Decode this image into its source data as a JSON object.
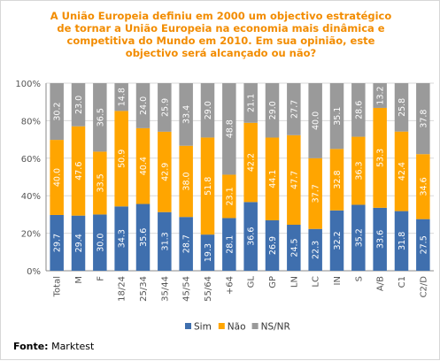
{
  "title_lines": [
    "A União Europeia definiu em 2000 um objectivo estratégico",
    "de tornar a União Europeia na economia mais dinâmica e",
    "competitiva do Mundo em 2010. Em sua opinião, este",
    "objectivo será alcançado ou não?"
  ],
  "source": {
    "label": "Fonte:",
    "value": "Marktest"
  },
  "chart_data": {
    "type": "bar",
    "stacked": true,
    "percent_stacked": true,
    "title": "A União Europeia definiu em 2000 um objectivo estratégico de tornar a União Europeia na economia mais dinâmica e competitiva do Mundo em 2010. Em sua opinião, este objectivo será alcançado ou não?",
    "xlabel": "",
    "ylabel": "",
    "ylim": [
      0,
      100
    ],
    "yticks": [
      "0%",
      "20%",
      "40%",
      "60%",
      "80%",
      "100%"
    ],
    "grid": true,
    "legend_position": "bottom",
    "categories": [
      "Total",
      "M",
      "F",
      "18/24",
      "25/34",
      "35/44",
      "45/54",
      "55/64",
      "+64",
      "GL",
      "GP",
      "LN",
      "LC",
      "IN",
      "S",
      "A/B",
      "C1",
      "C2/D"
    ],
    "series": [
      {
        "name": "Sim",
        "color": "#3f6fae",
        "values": [
          29.7,
          29.4,
          30.0,
          34.3,
          35.6,
          31.3,
          28.7,
          19.3,
          28.1,
          36.6,
          26.9,
          24.5,
          22.3,
          32.2,
          35.2,
          33.6,
          31.8,
          27.5
        ]
      },
      {
        "name": "Não",
        "color": "#ffa500",
        "values": [
          40.0,
          47.6,
          33.5,
          50.9,
          40.4,
          42.9,
          38.0,
          51.8,
          23.1,
          42.2,
          44.1,
          47.7,
          37.7,
          32.8,
          36.3,
          53.3,
          42.4,
          34.6
        ]
      },
      {
        "name": "NS/NR",
        "color": "#9a9a9a",
        "values": [
          30.2,
          23.0,
          36.5,
          14.8,
          24.0,
          25.9,
          33.4,
          29.0,
          48.8,
          21.1,
          29.0,
          27.7,
          40.0,
          35.1,
          28.6,
          13.2,
          25.8,
          37.8
        ]
      }
    ]
  },
  "colors": {
    "title": "#f28c00",
    "grid": "#d9d9d9",
    "axis": "#888888",
    "label_text": "#ffffff",
    "tick_text": "#555555"
  }
}
